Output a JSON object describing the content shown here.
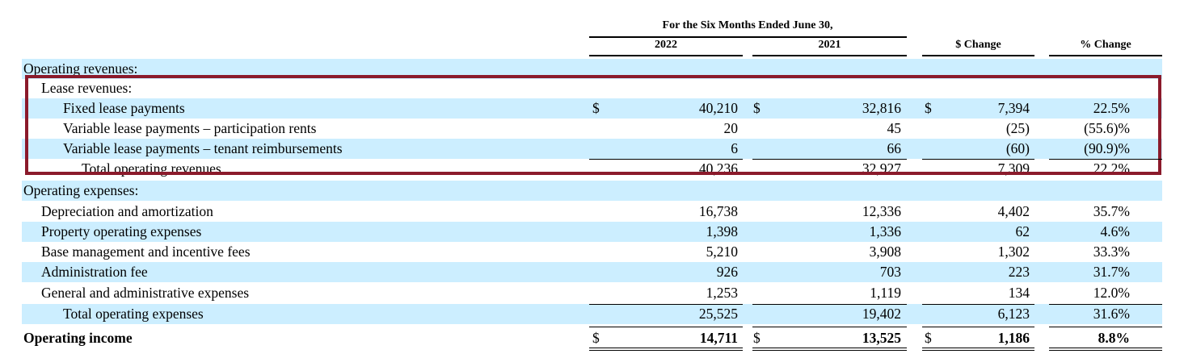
{
  "header": {
    "period": "For the Six Months Ended June 30,",
    "col_2022": "2022",
    "col_2021": "2021",
    "col_change": "$ Change",
    "col_pct": "% Change"
  },
  "rows": [
    {
      "label": "Operating revenues:",
      "v2022": "",
      "v2021": "",
      "change": "",
      "pct": "",
      "dollar": false
    },
    {
      "label": "Lease revenues:",
      "v2022": "",
      "v2021": "",
      "change": "",
      "pct": "",
      "dollar": false
    },
    {
      "label": "Fixed lease payments",
      "v2022": "40,210",
      "v2021": "32,816",
      "change": "7,394",
      "pct": "22.5%",
      "dollar": true
    },
    {
      "label": "Variable lease payments – participation rents",
      "v2022": "20",
      "v2021": "45",
      "change": "(25)",
      "pct": "(55.6)%",
      "dollar": false
    },
    {
      "label": "Variable lease payments – tenant reimbursements",
      "v2022": "6",
      "v2021": "66",
      "change": "(60)",
      "pct": "(90.9)%",
      "dollar": false
    },
    {
      "label": "Total operating revenues",
      "v2022": "40,236",
      "v2021": "32,927",
      "change": "7,309",
      "pct": "22.2%",
      "dollar": false
    },
    {
      "label": "Operating expenses:",
      "v2022": "",
      "v2021": "",
      "change": "",
      "pct": "",
      "dollar": false
    },
    {
      "label": "Depreciation and amortization",
      "v2022": "16,738",
      "v2021": "12,336",
      "change": "4,402",
      "pct": "35.7%",
      "dollar": false
    },
    {
      "label": "Property operating expenses",
      "v2022": "1,398",
      "v2021": "1,336",
      "change": "62",
      "pct": "4.6%",
      "dollar": false
    },
    {
      "label": "Base management and incentive fees",
      "v2022": "5,210",
      "v2021": "3,908",
      "change": "1,302",
      "pct": "33.3%",
      "dollar": false
    },
    {
      "label": "Administration fee",
      "v2022": "926",
      "v2021": "703",
      "change": "223",
      "pct": "31.7%",
      "dollar": false
    },
    {
      "label": "General and administrative expenses",
      "v2022": "1,253",
      "v2021": "1,119",
      "change": "134",
      "pct": "12.0%",
      "dollar": false
    },
    {
      "label": "Total operating expenses",
      "v2022": "25,525",
      "v2021": "19,402",
      "change": "6,123",
      "pct": "31.6%",
      "dollar": false
    },
    {
      "label": "Operating income",
      "v2022": "14,711",
      "v2021": "13,525",
      "change": "1,186",
      "pct": "8.8%",
      "dollar": true
    }
  ],
  "currency_symbol": "$"
}
